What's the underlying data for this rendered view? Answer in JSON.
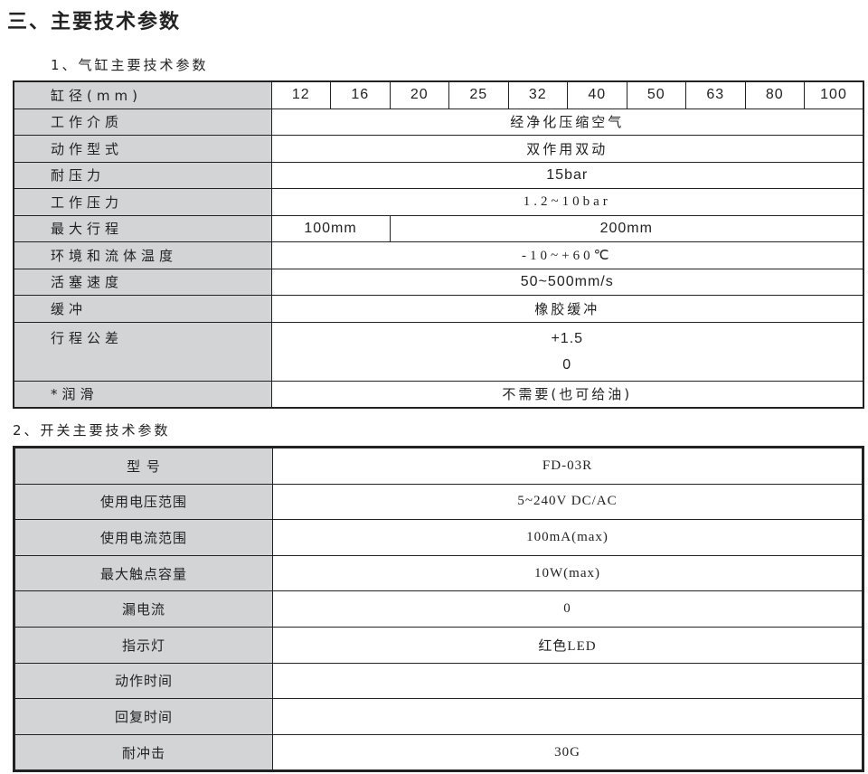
{
  "title": "三、主要技术参数",
  "section1": {
    "title": "1、气缸主要技术参数",
    "bore_label": "缸径(mm)",
    "bores": [
      "12",
      "16",
      "20",
      "25",
      "32",
      "40",
      "50",
      "63",
      "80",
      "100"
    ],
    "rows": {
      "medium": {
        "label": "工作介质",
        "value": "经净化压缩空气"
      },
      "action": {
        "label": "动作型式",
        "value": "双作用双动"
      },
      "proof": {
        "label": "耐压力",
        "value": "15bar"
      },
      "working": {
        "label": "工作压力",
        "value": "1.2~10bar"
      },
      "stroke": {
        "label": "最大行程",
        "value_small": "100mm",
        "value_large": "200mm"
      },
      "temp": {
        "label": "环境和流体温度",
        "value": "-10~+60℃"
      },
      "speed": {
        "label": "活塞速度",
        "value": "50~500mm/s"
      },
      "cushion": {
        "label": "缓冲",
        "value": "橡胶缓冲"
      },
      "tolerance": {
        "label": "行程公差",
        "upper": "+1.5",
        "lower": "0"
      },
      "lube": {
        "label": "*润滑",
        "value": "不需要(也可给油)"
      }
    }
  },
  "section2": {
    "title": "2、开关主要技术参数",
    "rows": [
      {
        "label": "型 号",
        "value": "FD-03R"
      },
      {
        "label": "使用电压范围",
        "value": "5~240V DC/AC"
      },
      {
        "label": "使用电流范围",
        "value": "100mA(max)"
      },
      {
        "label": "最大触点容量",
        "value": "10W(max)"
      },
      {
        "label": "漏电流",
        "value": "0"
      },
      {
        "label": "指示灯",
        "value": "红色LED"
      },
      {
        "label": "动作时间",
        "value": ""
      },
      {
        "label": "回复时间",
        "value": ""
      },
      {
        "label": "耐冲击",
        "value": "30G"
      }
    ]
  }
}
